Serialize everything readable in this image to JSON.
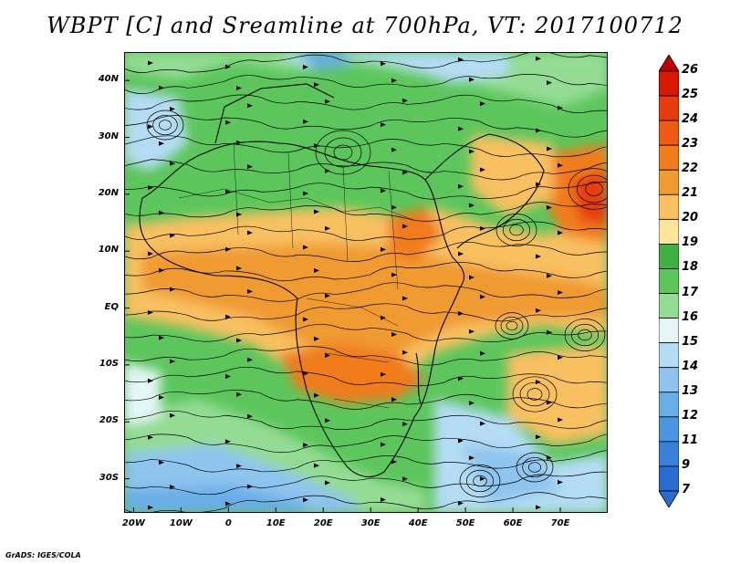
{
  "title": "WBPT [C] and Sreamline at 700hPa, VT: 2017100712",
  "credit": "GrADS: IGES/COLA",
  "map": {
    "y_ticks": [
      {
        "label": "40N",
        "lat": 40
      },
      {
        "label": "30N",
        "lat": 30
      },
      {
        "label": "20N",
        "lat": 20
      },
      {
        "label": "10N",
        "lat": 10
      },
      {
        "label": "EQ",
        "lat": 0
      },
      {
        "label": "10S",
        "lat": -10
      },
      {
        "label": "20S",
        "lat": -20
      },
      {
        "label": "30S",
        "lat": -30
      }
    ],
    "x_ticks": [
      {
        "label": "20W",
        "lon": -20
      },
      {
        "label": "10W",
        "lon": -10
      },
      {
        "label": "0",
        "lon": 0
      },
      {
        "label": "10E",
        "lon": 10
      },
      {
        "label": "20E",
        "lon": 20
      },
      {
        "label": "30E",
        "lon": 30
      },
      {
        "label": "40E",
        "lon": 40
      },
      {
        "label": "50E",
        "lon": 50
      },
      {
        "label": "60E",
        "lon": 60
      },
      {
        "label": "70E",
        "lon": 70
      }
    ],
    "lon_range": [
      -22,
      80
    ],
    "lat_range": [
      -36,
      45
    ]
  },
  "colorbar": {
    "levels": [
      "26",
      "25",
      "24",
      "23",
      "22",
      "21",
      "20",
      "19",
      "18",
      "17",
      "16",
      "15",
      "14",
      "13",
      "12",
      "11",
      "9",
      "7"
    ],
    "colors": [
      "#c00000",
      "#d81800",
      "#e83c10",
      "#f05a14",
      "#f07c1c",
      "#f09a30",
      "#f8c060",
      "#fde69a",
      "#40b040",
      "#5cc65c",
      "#94dc94",
      "#e4f6f6",
      "#b4dcf4",
      "#8ec4ee",
      "#6aaee8",
      "#4c96e0",
      "#3a80d8",
      "#2a6cd0"
    ]
  }
}
